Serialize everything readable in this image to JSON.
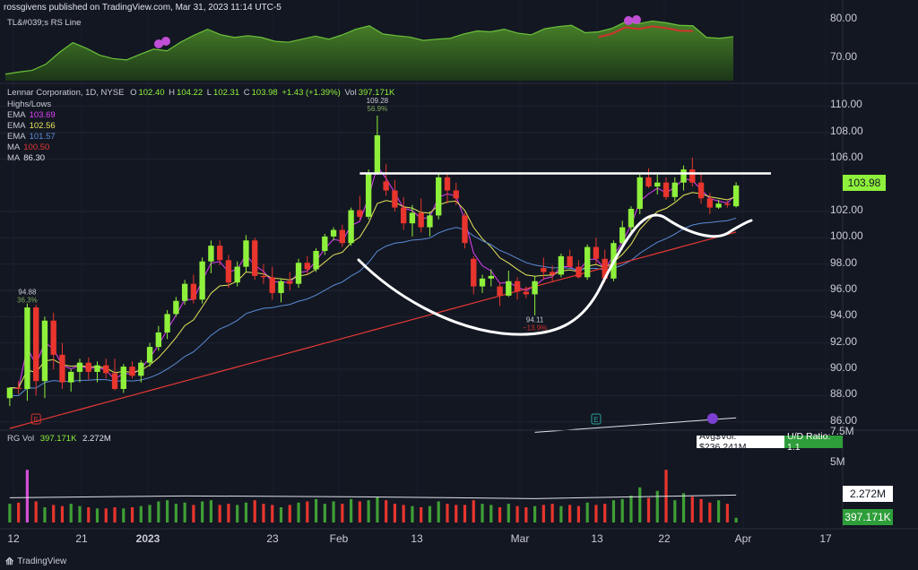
{
  "header": {
    "publisher": "rossgivens published on TradingView.com, Mar 31, 2023 11:14 UTC-5"
  },
  "rs_panel": {
    "legend": "TL&#039;s RS Line",
    "price_labels": [
      "80.00",
      "70.00"
    ]
  },
  "main": {
    "symbol_line": "Lennar Corporation, 1D, NYSE",
    "ohlc": {
      "o_label": "O",
      "o": "102.40",
      "h_label": "H",
      "h": "104.22",
      "l_label": "L",
      "l": "102.31",
      "c_label": "C",
      "c": "103.98",
      "change": "+1.43 (+1.39%)",
      "vol_label": "Vol",
      "vol": "397.171K"
    },
    "indicators": [
      {
        "name": "Highs/Lows",
        "value": "",
        "color": "#c7cad3"
      },
      {
        "name": "EMA",
        "value": "103.69",
        "color": "#e040fb"
      },
      {
        "name": "EMA",
        "value": "102.56",
        "color": "#e6e65a"
      },
      {
        "name": "EMA",
        "value": "101.57",
        "color": "#5b8cd6"
      },
      {
        "name": "MA",
        "value": "100.50",
        "color": "#e53935"
      },
      {
        "name": "MA",
        "value": "86.30",
        "color": "#e0e3eb"
      }
    ],
    "price_labels": [
      "110.00",
      "108.00",
      "106.00",
      "102.00",
      "100.00",
      "98.00",
      "96.00",
      "94.00",
      "92.00",
      "90.00",
      "88.00",
      "86.00"
    ],
    "last_price": "103.98",
    "annotations": {
      "high_value": "109.28",
      "high_pct": "56.9%",
      "low_value": "94.88",
      "low_pct": "36.3%",
      "trough_value": "94.11",
      "trough_pct": "−13.9%",
      "earnings_marker": "E",
      "event_marker": "E"
    }
  },
  "volume": {
    "legend_name": "RG Vol",
    "legend_v1": "397.171K",
    "legend_v2": "2.272M",
    "avg_dollar_vol": "Avg$Vol: $236.241M",
    "ud_ratio": "U/D Ratio: 1.1",
    "price_labels": [
      "7.5M",
      "5M"
    ],
    "avg_tag": "2.272M",
    "vol_tag": "397.171K"
  },
  "x_axis": [
    "12",
    "21",
    "2023",
    "23",
    "Feb",
    "13",
    "Mar",
    "13",
    "22",
    "Apr",
    "17"
  ],
  "footer": {
    "brand": "TradingView"
  },
  "colors": {
    "up": "#8ef03b",
    "down": "#e8352d",
    "bg": "#131722",
    "white_line": "#ffffff"
  },
  "chart_data": {
    "type": "candlestick",
    "title": "Lennar Corporation, 1D, NYSE",
    "ylim": [
      85.5,
      111
    ],
    "candles": [
      [
        87.8,
        88.4,
        87.2,
        88.6
      ],
      [
        88.6,
        89.1,
        88.1,
        88.5
      ],
      [
        88.5,
        95.0,
        87.6,
        94.7
      ],
      [
        94.7,
        94.9,
        88.0,
        89.1
      ],
      [
        89.1,
        94.0,
        87.8,
        93.7
      ],
      [
        93.7,
        94.3,
        90.0,
        91.1
      ],
      [
        91.1,
        92.0,
        88.5,
        89.0
      ],
      [
        89.0,
        90.0,
        88.3,
        89.8
      ],
      [
        89.8,
        90.8,
        89.0,
        90.5
      ],
      [
        90.5,
        90.9,
        89.2,
        89.8
      ],
      [
        89.8,
        90.6,
        89.0,
        90.3
      ],
      [
        90.3,
        90.8,
        89.3,
        89.7
      ],
      [
        89.7,
        90.8,
        88.4,
        88.5
      ],
      [
        88.5,
        90.4,
        88.2,
        90.2
      ],
      [
        90.2,
        90.6,
        89.3,
        89.5
      ],
      [
        89.5,
        90.7,
        89.0,
        90.5
      ],
      [
        90.5,
        92.0,
        90.2,
        91.7
      ],
      [
        91.7,
        93.3,
        91.4,
        92.8
      ],
      [
        92.8,
        94.5,
        92.3,
        94.2
      ],
      [
        94.2,
        95.5,
        94.0,
        95.2
      ],
      [
        95.2,
        96.8,
        94.9,
        96.5
      ],
      [
        96.5,
        97.2,
        95.0,
        95.3
      ],
      [
        95.3,
        98.5,
        95.0,
        98.2
      ],
      [
        98.2,
        99.8,
        97.3,
        99.4
      ],
      [
        99.4,
        99.8,
        97.9,
        98.3
      ],
      [
        98.3,
        98.7,
        96.2,
        96.6
      ],
      [
        96.6,
        98.2,
        96.3,
        97.8
      ],
      [
        97.8,
        100.2,
        97.4,
        99.8
      ],
      [
        99.8,
        100.0,
        96.8,
        97.1
      ],
      [
        97.1,
        98.0,
        96.5,
        97.0
      ],
      [
        97.0,
        97.8,
        95.3,
        95.8
      ],
      [
        95.8,
        96.9,
        95.1,
        96.7
      ],
      [
        96.7,
        97.4,
        96.0,
        96.5
      ],
      [
        96.5,
        98.4,
        96.2,
        98.1
      ],
      [
        98.1,
        98.6,
        97.2,
        97.6
      ],
      [
        97.6,
        99.2,
        97.4,
        99.0
      ],
      [
        99.0,
        100.3,
        98.7,
        100.1
      ],
      [
        100.1,
        100.8,
        99.8,
        100.6
      ],
      [
        100.6,
        101.0,
        99.3,
        99.6
      ],
      [
        99.6,
        102.3,
        99.4,
        102.1
      ],
      [
        102.1,
        103.2,
        101.3,
        101.6
      ],
      [
        101.6,
        105.2,
        101.4,
        104.9
      ],
      [
        104.9,
        109.3,
        104.8,
        107.8
      ],
      [
        104.3,
        105.6,
        103.2,
        103.6
      ],
      [
        103.6,
        104.4,
        102.0,
        102.3
      ],
      [
        102.3,
        103.1,
        100.6,
        101.1
      ],
      [
        101.1,
        102.5,
        100.1,
        101.9
      ],
      [
        101.9,
        103.0,
        100.4,
        100.8
      ],
      [
        100.8,
        102.0,
        100.1,
        101.7
      ],
      [
        101.7,
        104.9,
        101.4,
        104.6
      ],
      [
        104.6,
        105.0,
        102.6,
        103.6
      ],
      [
        103.6,
        104.2,
        102.5,
        103.0
      ],
      [
        101.7,
        101.9,
        99.2,
        99.6
      ],
      [
        98.4,
        98.6,
        95.7,
        96.3
      ],
      [
        96.3,
        97.2,
        95.8,
        96.9
      ],
      [
        96.9,
        97.6,
        96.3,
        97.1
      ],
      [
        96.3,
        96.6,
        94.8,
        95.6
      ],
      [
        95.6,
        97.5,
        95.5,
        96.7
      ],
      [
        96.7,
        97.0,
        95.3,
        95.9
      ],
      [
        95.9,
        96.3,
        95.4,
        95.7
      ],
      [
        95.7,
        97.1,
        94.1,
        96.7
      ],
      [
        97.7,
        98.5,
        96.8,
        97.4
      ],
      [
        97.4,
        97.9,
        96.6,
        97.2
      ],
      [
        97.2,
        98.8,
        97.0,
        98.6
      ],
      [
        98.6,
        99.1,
        97.7,
        97.8
      ],
      [
        97.8,
        98.3,
        96.9,
        97.0
      ],
      [
        97.0,
        99.5,
        96.8,
        99.3
      ],
      [
        99.3,
        100.0,
        98.0,
        98.4
      ],
      [
        98.4,
        99.1,
        96.6,
        96.9
      ],
      [
        96.9,
        99.8,
        96.7,
        99.6
      ],
      [
        99.6,
        101.3,
        99.1,
        100.8
      ],
      [
        100.8,
        102.4,
        100.4,
        102.2
      ],
      [
        102.2,
        104.8,
        101.8,
        104.6
      ],
      [
        104.6,
        105.3,
        103.8,
        103.9
      ],
      [
        103.9,
        104.8,
        103.3,
        104.2
      ],
      [
        104.2,
        104.6,
        102.9,
        103.1
      ],
      [
        103.1,
        104.6,
        102.8,
        104.2
      ],
      [
        104.2,
        105.5,
        103.6,
        105.2
      ],
      [
        105.2,
        106.1,
        103.9,
        104.2
      ],
      [
        104.2,
        105.0,
        102.6,
        103.0
      ],
      [
        103.0,
        103.4,
        101.8,
        102.3
      ],
      [
        102.3,
        102.9,
        102.2,
        102.6
      ],
      [
        102.6,
        102.8,
        102.3,
        102.5
      ],
      [
        102.4,
        104.22,
        102.31,
        103.98
      ]
    ],
    "volume_millions": [
      1.6,
      1.7,
      4.5,
      1.8,
      1.3,
      1.5,
      1.4,
      1.6,
      1.4,
      1.3,
      1.2,
      1.2,
      1.3,
      1.2,
      1.3,
      1.4,
      1.5,
      1.8,
      1.9,
      1.6,
      1.7,
      1.5,
      1.8,
      1.9,
      1.5,
      1.6,
      1.5,
      1.7,
      1.9,
      1.6,
      1.5,
      1.3,
      1.5,
      1.7,
      1.8,
      2.0,
      1.6,
      1.8,
      1.6,
      2.0,
      1.8,
      1.9,
      2.2,
      1.9,
      1.6,
      1.5,
      1.4,
      1.3,
      1.4,
      1.8,
      1.6,
      1.5,
      1.5,
      1.9,
      1.6,
      1.5,
      1.3,
      1.6,
      1.4,
      1.3,
      1.4,
      1.5,
      1.6,
      1.4,
      1.5,
      1.4,
      1.7,
      1.5,
      1.6,
      1.9,
      2.0,
      2.3,
      3.0,
      2.1,
      2.7,
      4.5,
      1.9,
      2.5,
      2.2,
      2.0,
      1.7,
      1.9,
      1.6,
      0.4
    ],
    "volume_avg_millions": 2.272,
    "rs_line": {
      "ylim": [
        65,
        82
      ],
      "values": [
        66.5,
        67.0,
        67.4,
        68.8,
        71.5,
        73.8,
        72.5,
        70.9,
        70.1,
        69.8,
        71.1,
        72.3,
        71.9,
        73.9,
        75.5,
        76.9,
        75.6,
        75.0,
        75.4,
        75.0,
        74.1,
        73.9,
        74.6,
        75.3,
        74.6,
        75.6,
        76.9,
        77.7,
        75.8,
        75.4,
        75.1,
        74.3,
        74.6,
        74.8,
        75.8,
        76.5,
        76.3,
        76.9,
        76.0,
        75.6,
        77.0,
        77.5,
        77.8,
        76.1,
        76.3,
        77.1,
        78.6,
        78.2,
        78.8,
        78.4,
        77.8,
        77.7,
        75.0,
        74.8,
        75.2
      ]
    },
    "resistance_level": 104.9
  }
}
